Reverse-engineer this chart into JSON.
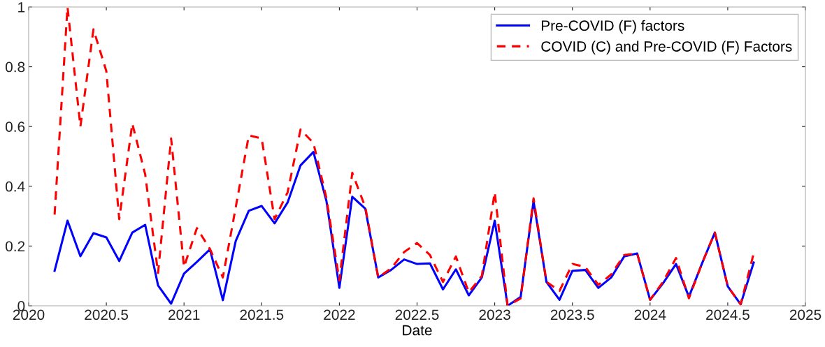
{
  "chart_data": {
    "type": "line",
    "xlabel": "Date",
    "x": [
      2020.167,
      2020.25,
      2020.333,
      2020.417,
      2020.5,
      2020.583,
      2020.667,
      2020.75,
      2020.833,
      2020.917,
      2021.0,
      2021.083,
      2021.167,
      2021.25,
      2021.333,
      2021.417,
      2021.5,
      2021.583,
      2021.667,
      2021.75,
      2021.833,
      2021.917,
      2022.0,
      2022.083,
      2022.167,
      2022.25,
      2022.333,
      2022.417,
      2022.5,
      2022.583,
      2022.667,
      2022.75,
      2022.833,
      2022.917,
      2023.0,
      2023.083,
      2023.167,
      2023.25,
      2023.333,
      2023.417,
      2023.5,
      2023.583,
      2023.667,
      2023.75,
      2023.833,
      2023.917,
      2024.0,
      2024.083,
      2024.167,
      2024.25,
      2024.333,
      2024.417,
      2024.5,
      2024.583,
      2024.667
    ],
    "series": [
      {
        "name": "Pre-COVID (F) factors",
        "color": "#0000ff",
        "line_style": "solid",
        "values": [
          0.117,
          0.285,
          0.166,
          0.243,
          0.229,
          0.15,
          0.245,
          0.271,
          0.068,
          0.007,
          0.108,
          0.147,
          0.189,
          0.019,
          0.217,
          0.318,
          0.334,
          0.276,
          0.346,
          0.47,
          0.515,
          0.35,
          0.06,
          0.365,
          0.325,
          0.095,
          0.12,
          0.155,
          0.14,
          0.142,
          0.055,
          0.122,
          0.035,
          0.095,
          0.285,
          0.0,
          0.03,
          0.35,
          0.08,
          0.02,
          0.117,
          0.12,
          0.06,
          0.095,
          0.165,
          0.175,
          0.02,
          0.075,
          0.14,
          0.03,
          0.14,
          0.245,
          0.065,
          0.005,
          0.145
        ]
      },
      {
        "name": "COVID (C) and Pre-COVID (F) Factors",
        "color": "#ff0000",
        "line_style": "dashed",
        "values": [
          0.305,
          1.0,
          0.6,
          0.925,
          0.785,
          0.29,
          0.61,
          0.44,
          0.11,
          0.56,
          0.13,
          0.26,
          0.19,
          0.095,
          0.33,
          0.57,
          0.56,
          0.29,
          0.38,
          0.59,
          0.545,
          0.36,
          0.085,
          0.445,
          0.33,
          0.095,
          0.125,
          0.18,
          0.21,
          0.17,
          0.08,
          0.165,
          0.045,
          0.1,
          0.38,
          0.0,
          0.025,
          0.36,
          0.08,
          0.05,
          0.14,
          0.13,
          0.07,
          0.105,
          0.17,
          0.175,
          0.02,
          0.08,
          0.16,
          0.025,
          0.14,
          0.245,
          0.065,
          0.005,
          0.175
        ]
      }
    ],
    "xlim": [
      2020,
      2025
    ],
    "xticks": [
      2020,
      2020.5,
      2021,
      2021.5,
      2022,
      2022.5,
      2023,
      2023.5,
      2024,
      2024.5,
      2025
    ],
    "ylim": [
      0,
      1
    ],
    "yticks": [
      0,
      0.2,
      0.4,
      0.6,
      0.8,
      1
    ],
    "grid": false,
    "legend": "top right"
  }
}
